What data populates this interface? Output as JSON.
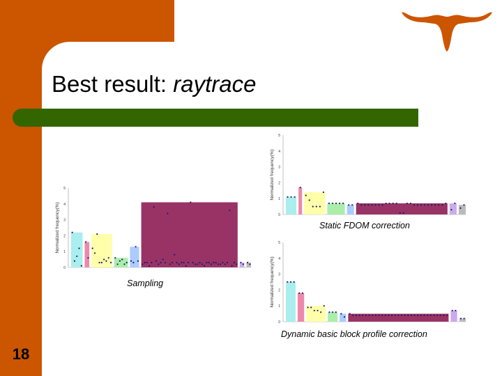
{
  "slide": {
    "title_prefix": "Best result: ",
    "title_italic": "raytrace",
    "number": "18",
    "colors": {
      "accent": "#cc5500",
      "bar": "#336600"
    },
    "logo_icon": "longhorn-icon"
  },
  "chart_data": [
    {
      "type": "bar",
      "caption": "Sampling",
      "ylabel": "Normalized frequency(%)",
      "ylim": [
        0,
        5
      ],
      "yticks": [
        "0",
        "1",
        "2",
        "3",
        "4",
        "5"
      ],
      "segments": [
        {
          "color": "#aaeeee",
          "values": [
            2.2,
            0.4,
            0.7,
            1.2,
            0.1
          ]
        },
        {
          "color": "#ee88aa",
          "values": [
            1.6,
            0.6
          ]
        },
        {
          "color": "#ffffaa",
          "values": [
            1.2,
            0.9,
            2.1,
            0.3,
            0.3,
            0.5,
            0.4,
            0.6,
            0.3
          ]
        },
        {
          "color": "#aaeeaa",
          "values": [
            0.6,
            0.2,
            0.4,
            0.5,
            0.2,
            0.3
          ]
        },
        {
          "color": "#aaccff",
          "values": [
            0.4,
            0.3,
            1.3,
            0.4
          ]
        },
        {
          "color": "#993366",
          "values": [
            0.2,
            0.3,
            0.3,
            0.1,
            0.3,
            3.8,
            0.4,
            0.2,
            0.3,
            0.5,
            0.3,
            3.4,
            0.2,
            0.3,
            0.8,
            0.3,
            0.2,
            0.3,
            0.3,
            0.1,
            0.3,
            4.1,
            0.3,
            0.2,
            0.2,
            0.3,
            0.2,
            0.1,
            0.3,
            0.3,
            0.2,
            0.3,
            0.3,
            0.2,
            0.2,
            0.3,
            0.2,
            0.3,
            3.6,
            0.1,
            0.3,
            0.2
          ]
        },
        {
          "color": "#ccaaee",
          "values": [
            0.3,
            0.2
          ]
        },
        {
          "color": "#bbbbbb",
          "values": [
            0.3,
            0.2
          ]
        }
      ]
    },
    {
      "type": "bar",
      "caption": "Static FDOM correction",
      "ylabel": "Normalized frequency(%)",
      "ylim": [
        0,
        5
      ],
      "yticks": [
        "0",
        "1",
        "2",
        "3",
        "4",
        "5"
      ],
      "segments": [
        {
          "color": "#aaeeee",
          "values": [
            1.1,
            1.1,
            1.1
          ]
        },
        {
          "color": "#ee88aa",
          "values": [
            1.7
          ]
        },
        {
          "color": "#ffffaa",
          "values": [
            1.2,
            0.9,
            0.5,
            0.5,
            0.5,
            1.4
          ]
        },
        {
          "color": "#aaeeaa",
          "values": [
            0.7,
            0.7,
            0.7,
            0.7,
            0.7
          ]
        },
        {
          "color": "#aaccff",
          "values": [
            0.6,
            0.6
          ]
        },
        {
          "color": "#993366",
          "values": [
            0.7,
            0.6,
            0.6,
            0.6,
            0.6,
            0.6,
            0.6,
            0.6,
            0.7,
            0.7,
            0.7,
            0.7,
            0.1,
            0.1,
            0.7,
            0.7,
            0.6,
            0.6,
            0.6,
            0.6,
            0.6,
            0.6,
            0.6,
            0.6,
            0.6,
            0.7
          ]
        },
        {
          "color": "#ccaaee",
          "values": [
            0.3,
            0.7
          ]
        },
        {
          "color": "#bbbbbb",
          "values": [
            0.4,
            0.6
          ]
        }
      ]
    },
    {
      "type": "bar",
      "caption": "Dynamic basic block profile correction",
      "ylabel": "Normalized frequency(%)",
      "ylim": [
        0,
        5
      ],
      "yticks": [
        "0",
        "1",
        "2",
        "3",
        "4",
        "5"
      ],
      "segments": [
        {
          "color": "#aaeeee",
          "values": [
            2.5,
            2.5,
            2.5
          ]
        },
        {
          "color": "#ee88aa",
          "values": [
            1.8,
            1.8
          ]
        },
        {
          "color": "#ffffaa",
          "values": [
            0.9,
            0.9,
            0.7,
            0.7,
            0.6,
            1.0
          ]
        },
        {
          "color": "#aaeeaa",
          "values": [
            0.6,
            0.6,
            0.6
          ]
        },
        {
          "color": "#aaccff",
          "values": [
            0.5,
            0.3
          ]
        },
        {
          "color": "#993366",
          "values": [
            0.5,
            0.4,
            0.4,
            0.4,
            0.4,
            0.4,
            0.4,
            0.4,
            0.4,
            0.4,
            0.4,
            0.4,
            0.4,
            0.4,
            0.4,
            0.4,
            0.4,
            0.4,
            0.4,
            0.4,
            0.4,
            0.4,
            0.4,
            0.4,
            0.4,
            0.4,
            0.4,
            0.4,
            0.4,
            0.4,
            0.4
          ]
        },
        {
          "color": "#ccaaee",
          "values": [
            0.7,
            0.7
          ]
        },
        {
          "color": "#bbbbbb",
          "values": [
            0.2,
            0.2
          ]
        }
      ]
    }
  ]
}
